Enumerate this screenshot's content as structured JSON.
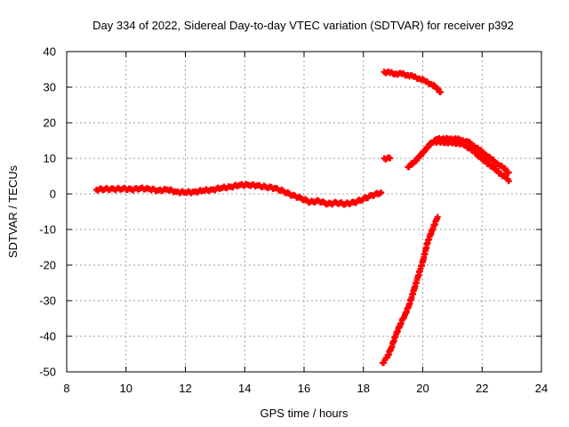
{
  "chart_data": {
    "type": "scatter",
    "title": "Day 334 of 2022, Sidereal Day-to-day VTEC variation (SDTVAR) for receiver p392",
    "xlabel": "GPS time / hours",
    "ylabel": "SDTVAR / TECUs",
    "xlim": [
      8,
      24
    ],
    "ylim": [
      -50,
      40
    ],
    "xticks": [
      "8",
      "10",
      "12",
      "14",
      "16",
      "18",
      "20",
      "22",
      "24"
    ],
    "yticks": [
      "40",
      "30",
      "20",
      "10",
      "0",
      "-10",
      "-20",
      "-30",
      "-40",
      "-50"
    ],
    "grid": true,
    "marker": "plus",
    "color": "#ff0000",
    "series": [
      {
        "points": [
          [
            9.0,
            1.2
          ],
          [
            9.3,
            1.4
          ],
          [
            9.6,
            1.3
          ],
          [
            9.9,
            1.5
          ],
          [
            10.2,
            1.2
          ],
          [
            10.5,
            1.6
          ],
          [
            10.8,
            1.3
          ],
          [
            11.1,
            1.0
          ],
          [
            11.4,
            1.2
          ],
          [
            11.7,
            0.6
          ],
          [
            12.0,
            0.4
          ],
          [
            12.3,
            0.6
          ],
          [
            12.6,
            0.9
          ],
          [
            12.9,
            1.2
          ],
          [
            13.2,
            1.6
          ],
          [
            13.5,
            2.0
          ],
          [
            13.8,
            2.4
          ],
          [
            14.1,
            2.6
          ],
          [
            14.4,
            2.3
          ],
          [
            14.7,
            2.0
          ],
          [
            15.0,
            1.6
          ],
          [
            15.3,
            0.8
          ],
          [
            15.6,
            -0.4
          ],
          [
            15.9,
            -1.2
          ],
          [
            16.2,
            -2.3
          ],
          [
            16.5,
            -2.0
          ],
          [
            16.8,
            -2.8
          ],
          [
            17.1,
            -2.5
          ],
          [
            17.4,
            -2.8
          ],
          [
            17.7,
            -2.4
          ],
          [
            18.0,
            -1.4
          ],
          [
            18.3,
            -0.4
          ],
          [
            18.6,
            0.4
          ]
        ]
      },
      {
        "points": [
          [
            18.7,
            34.3
          ],
          [
            18.9,
            34.0
          ],
          [
            19.1,
            33.8
          ],
          [
            19.3,
            33.7
          ],
          [
            19.5,
            33.4
          ],
          [
            19.7,
            32.9
          ],
          [
            19.9,
            32.4
          ],
          [
            20.1,
            31.6
          ],
          [
            20.3,
            30.8
          ],
          [
            20.5,
            29.6
          ],
          [
            20.6,
            28.6
          ]
        ]
      },
      {
        "points": [
          [
            18.7,
            10.0
          ],
          [
            18.8,
            10.0
          ],
          [
            18.9,
            10.0
          ]
        ]
      },
      {
        "points": [
          [
            19.5,
            7.6
          ],
          [
            19.7,
            8.8
          ],
          [
            19.9,
            10.6
          ],
          [
            20.1,
            12.6
          ],
          [
            20.3,
            14.4
          ],
          [
            20.5,
            15.4
          ],
          [
            20.7,
            15.6
          ],
          [
            20.9,
            15.3
          ],
          [
            21.1,
            15.6
          ],
          [
            21.3,
            15.0
          ],
          [
            21.5,
            14.8
          ],
          [
            21.7,
            13.6
          ],
          [
            21.9,
            12.4
          ],
          [
            22.1,
            11.2
          ],
          [
            22.3,
            9.8
          ],
          [
            22.5,
            8.6
          ],
          [
            22.7,
            7.4
          ],
          [
            22.9,
            6.0
          ]
        ]
      },
      {
        "points": [
          [
            20.4,
            14.8
          ],
          [
            20.6,
            14.4
          ],
          [
            20.8,
            14.6
          ],
          [
            21.0,
            14.2
          ],
          [
            21.2,
            14.4
          ],
          [
            21.4,
            13.6
          ],
          [
            21.6,
            12.8
          ],
          [
            21.8,
            11.4
          ],
          [
            22.0,
            9.8
          ],
          [
            22.2,
            8.6
          ],
          [
            22.4,
            7.2
          ],
          [
            22.6,
            5.8
          ],
          [
            22.8,
            4.6
          ],
          [
            22.9,
            3.6
          ]
        ]
      },
      {
        "points": [
          [
            18.65,
            -47.5
          ],
          [
            18.8,
            -46.0
          ],
          [
            18.95,
            -43.0
          ],
          [
            19.1,
            -39.5
          ],
          [
            19.25,
            -36.5
          ],
          [
            19.4,
            -34.0
          ],
          [
            19.55,
            -31.0
          ],
          [
            19.7,
            -27.0
          ],
          [
            19.85,
            -23.0
          ],
          [
            20.0,
            -19.0
          ],
          [
            20.15,
            -14.0
          ],
          [
            20.3,
            -10.5
          ],
          [
            20.45,
            -7.5
          ],
          [
            20.5,
            -6.5
          ]
        ]
      }
    ]
  }
}
